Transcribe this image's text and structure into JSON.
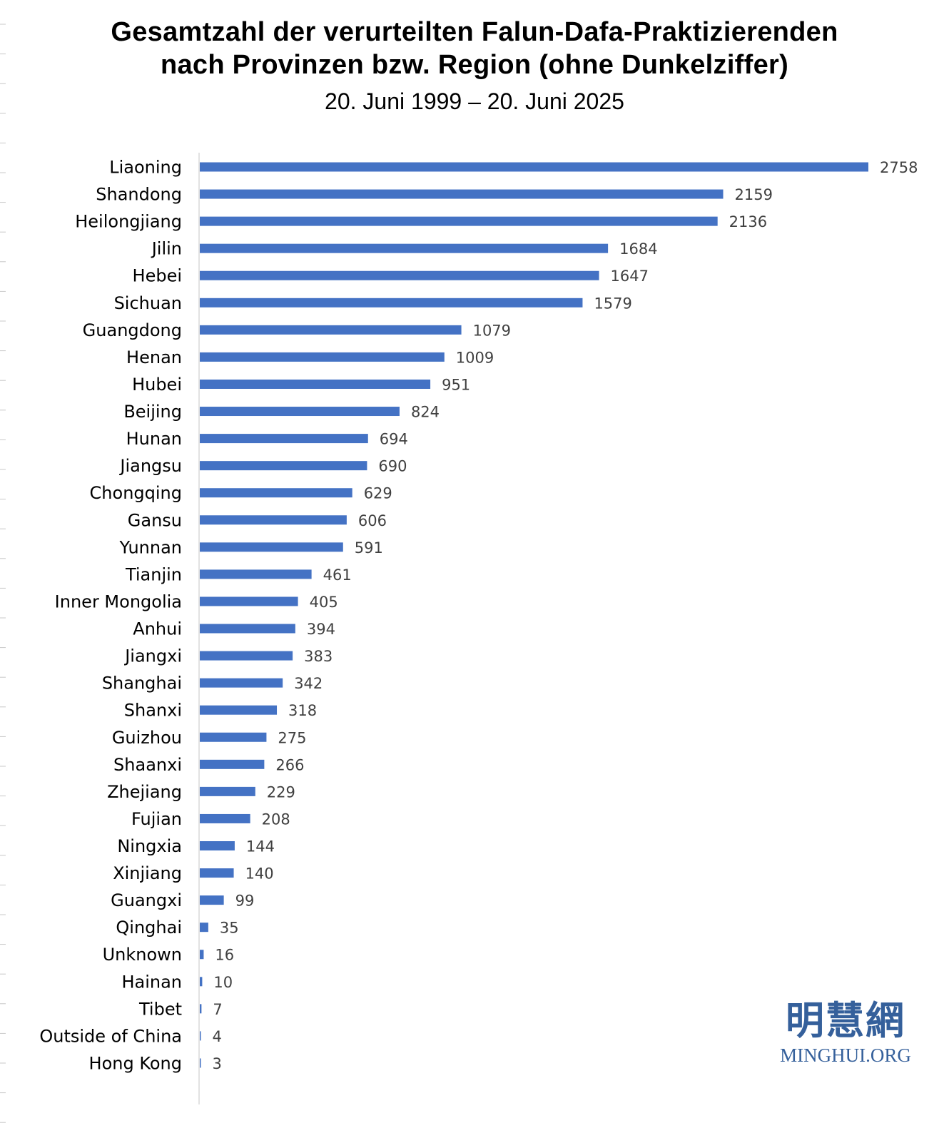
{
  "chart_data": {
    "type": "bar",
    "orientation": "horizontal",
    "title": [
      "Gesamtzahl der verurteilten Falun-Dafa-Praktizierenden",
      "nach Provinzen bzw. Region (ohne Dunkelziffer)"
    ],
    "subtitle": "20. Juni 1999 – 20. Juni 2025",
    "categories": [
      "Liaoning",
      "Shandong",
      "Heilongjiang",
      "Jilin",
      "Hebei",
      "Sichuan",
      "Guangdong",
      "Henan",
      "Hubei",
      "Beijing",
      "Hunan",
      "Jiangsu",
      "Chongqing",
      "Gansu",
      "Yunnan",
      "Tianjin",
      "Inner Mongolia",
      "Anhui",
      "Jiangxi",
      "Shanghai",
      "Shanxi",
      "Guizhou",
      "Shaanxi",
      "Zhejiang",
      "Fujian",
      "Ningxia",
      "Xinjiang",
      "Guangxi",
      "Qinghai",
      "Unknown",
      "Hainan",
      "Tibet",
      "Outside of China",
      "Hong Kong"
    ],
    "values": [
      2758,
      2159,
      2136,
      1684,
      1647,
      1579,
      1079,
      1009,
      951,
      824,
      694,
      690,
      629,
      606,
      591,
      461,
      405,
      394,
      383,
      342,
      318,
      275,
      266,
      229,
      208,
      144,
      140,
      99,
      35,
      16,
      10,
      7,
      4,
      3
    ],
    "xlim": [
      0,
      2758
    ],
    "grid": false,
    "data_labels": true,
    "bar_color": "#4472c4"
  },
  "watermark": {
    "chinese": "明慧網",
    "latin": "MINGHUI.ORG",
    "color": "#35609b"
  }
}
